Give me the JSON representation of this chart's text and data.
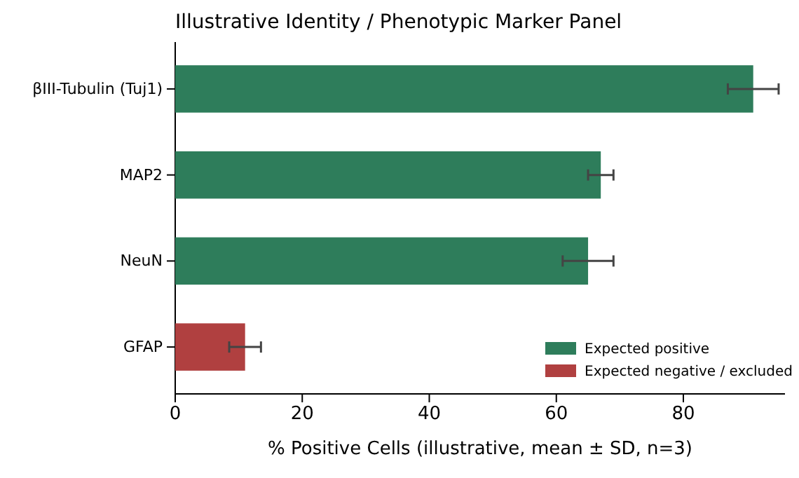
{
  "chart_data": {
    "type": "bar",
    "orientation": "horizontal",
    "title": "Illustrative Identity / Phenotypic Marker Panel",
    "xlabel": "% Positive Cells (illustrative, mean ± SD, n=3)",
    "categories": [
      "βIII-Tubulin (Tuj1)",
      "MAP2",
      "NeuN",
      "GFAP"
    ],
    "series": [
      {
        "name": "Expected positive",
        "color": "#2e7d5b",
        "values": [
          91,
          67,
          65,
          null
        ],
        "errors": [
          4,
          2,
          4,
          null
        ]
      },
      {
        "name": "Expected negative / excluded",
        "color": "#b04040",
        "values": [
          null,
          null,
          null,
          11
        ],
        "errors": [
          null,
          null,
          null,
          2.5
        ]
      }
    ],
    "xlim": [
      0,
      96
    ],
    "xticks": [
      0,
      20,
      40,
      60,
      80
    ],
    "grid": false,
    "legend": "bottom right"
  }
}
